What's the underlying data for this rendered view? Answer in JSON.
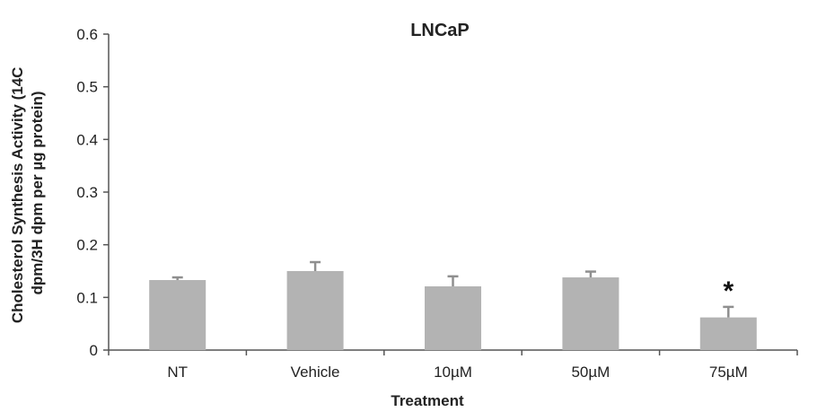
{
  "chart_data": {
    "type": "bar",
    "title": "LNCaP",
    "xlabel": "Treatment",
    "ylabel_lines": [
      "Cholesterol Synthesis Activity (14C",
      "dpm/3H dpm per µg protein)"
    ],
    "categories": [
      "NT",
      "Vehicle",
      "10µM",
      "50µM",
      "75µM"
    ],
    "values": [
      0.133,
      0.15,
      0.121,
      0.138,
      0.062
    ],
    "errors": [
      0.005,
      0.017,
      0.019,
      0.011,
      0.02
    ],
    "ylim": [
      0,
      0.6
    ],
    "yticks": [
      "0",
      "0.1",
      "0.2",
      "0.3",
      "0.4",
      "0.5",
      "0.6"
    ],
    "ytick_values": [
      0,
      0.1,
      0.2,
      0.3,
      0.4,
      0.5,
      0.6
    ],
    "annotations": [
      {
        "category": "75µM",
        "text": "*"
      }
    ],
    "bar_color": "#b3b3b3",
    "error_color": "#8f8f8f",
    "grid": false,
    "legend": "none"
  }
}
